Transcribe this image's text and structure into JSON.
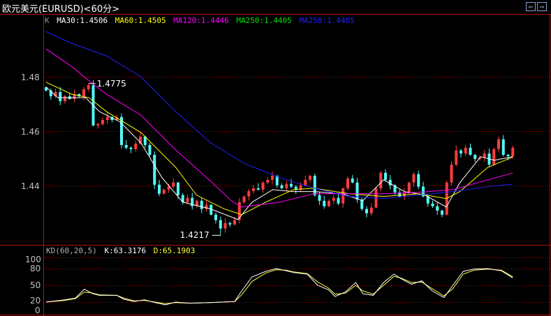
{
  "header": {
    "title": "欧元美元(EURUSD)<60分>",
    "nav_prev": "⇦",
    "nav_next": "⇨"
  },
  "legend": {
    "k_label": "K",
    "ma30": "MA30:1.4506",
    "ma60": "MA60:1.4505",
    "ma120": "MA120:1.4446",
    "ma250a": "MA250:1.4405",
    "ma250b": "MA250:1.4405"
  },
  "colors": {
    "up": "#ff3c3c",
    "down": "#54fcfc",
    "ma30": "#ffffff",
    "ma60": "#ffff00",
    "ma120": "#ff00ff",
    "ma250a": "#00e000",
    "ma250b": "#2020ff",
    "grid": "#a00000",
    "frame": "#b01010",
    "k": "#ffffff",
    "d": "#ffff40"
  },
  "kd_legend": {
    "name": "KD(60,20,5)",
    "k": "K:63.3176",
    "d": "D:65.1903"
  },
  "chart_data": [
    {
      "type": "candlestick",
      "yticks": [
        1.48,
        1.46,
        1.44
      ],
      "ytick_labels": [
        "1.48",
        "1.46",
        "1.44"
      ],
      "ylim": [
        1.4185,
        1.503
      ],
      "grid": true,
      "annotations": [
        {
          "index": 9,
          "value": 1.4775,
          "label": "1.4775",
          "kind": "high"
        },
        {
          "index": 37,
          "value": 1.4217,
          "label": "1.4217",
          "kind": "low"
        }
      ],
      "close": [
        1.4749,
        1.4728,
        1.4744,
        1.471,
        1.4728,
        1.4718,
        1.4736,
        1.4728,
        1.4754,
        1.4769,
        1.4621,
        1.4626,
        1.4641,
        1.4652,
        1.4641,
        1.4652,
        1.4549,
        1.4539,
        1.4534,
        1.4554,
        1.458,
        1.4549,
        1.4513,
        1.4403,
        1.437,
        1.4385,
        1.4396,
        1.4411,
        1.4365,
        1.4339,
        1.4355,
        1.4324,
        1.4344,
        1.4314,
        1.4329,
        1.4293,
        1.4273,
        1.4242,
        1.4262,
        1.4257,
        1.4273,
        1.4339,
        1.436,
        1.438,
        1.439,
        1.4385,
        1.4411,
        1.4421,
        1.4436,
        1.4401,
        1.439,
        1.4406,
        1.4396,
        1.4385,
        1.4401,
        1.4421,
        1.4436,
        1.4365,
        1.4344,
        1.4324,
        1.4344,
        1.4355,
        1.4334,
        1.439,
        1.4426,
        1.4411,
        1.4349,
        1.4314,
        1.4298,
        1.4319,
        1.439,
        1.4447,
        1.4421,
        1.4401,
        1.4375,
        1.436,
        1.4375,
        1.4411,
        1.4442,
        1.4396,
        1.436,
        1.4334,
        1.4324,
        1.4308,
        1.4293,
        1.4411,
        1.4477,
        1.4529,
        1.4518,
        1.4539,
        1.4513,
        1.4498,
        1.4503,
        1.4518,
        1.4477,
        1.4534,
        1.457,
        1.4513,
        1.4508,
        1.4539
      ],
      "moving_averages": [
        {
          "name": "MA30",
          "color_key": "ma30",
          "points": [
            [
              0,
              1.4762
            ],
            [
              2.5,
              1.4723
            ],
            [
              8.4,
              1.4723
            ],
            [
              11.3,
              1.4672
            ],
            [
              15.7,
              1.4634
            ],
            [
              20.1,
              1.4557
            ],
            [
              24.6,
              1.4429
            ],
            [
              29,
              1.4339
            ],
            [
              34.9,
              1.4314
            ],
            [
              40.7,
              1.4275
            ],
            [
              43.7,
              1.4339
            ],
            [
              48.1,
              1.4385
            ],
            [
              52.5,
              1.4378
            ],
            [
              56.9,
              1.4378
            ],
            [
              62.8,
              1.437
            ],
            [
              67.2,
              1.4344
            ],
            [
              71.6,
              1.4421
            ],
            [
              76,
              1.4378
            ],
            [
              80.4,
              1.4365
            ],
            [
              84.9,
              1.4321
            ],
            [
              87.8,
              1.4411
            ],
            [
              92.2,
              1.4506
            ],
            [
              95.1,
              1.4493
            ],
            [
              99,
              1.4506
            ]
          ]
        },
        {
          "name": "MA60",
          "color_key": "ma60",
          "points": [
            [
              0,
              1.478
            ],
            [
              5.4,
              1.4736
            ],
            [
              9.1,
              1.4723
            ],
            [
              12.8,
              1.4672
            ],
            [
              20.1,
              1.4595
            ],
            [
              27.5,
              1.4467
            ],
            [
              31.9,
              1.4365
            ],
            [
              37.8,
              1.4314
            ],
            [
              41.5,
              1.4293
            ],
            [
              46.6,
              1.4339
            ],
            [
              52.5,
              1.4385
            ],
            [
              56.9,
              1.439
            ],
            [
              64.3,
              1.437
            ],
            [
              71.6,
              1.436
            ],
            [
              79,
              1.437
            ],
            [
              84.9,
              1.4352
            ],
            [
              87.8,
              1.4378
            ],
            [
              93.7,
              1.4467
            ],
            [
              99,
              1.4505
            ]
          ]
        },
        {
          "name": "MA120",
          "color_key": "ma120",
          "points": [
            [
              0,
              1.4902
            ],
            [
              5.4,
              1.4838
            ],
            [
              9.9,
              1.4774
            ],
            [
              12.8,
              1.4736
            ],
            [
              20.1,
              1.4659
            ],
            [
              27.5,
              1.4531
            ],
            [
              34.9,
              1.4416
            ],
            [
              39.3,
              1.4344
            ],
            [
              41.5,
              1.4321
            ],
            [
              49.6,
              1.4339
            ],
            [
              56.9,
              1.437
            ],
            [
              64.3,
              1.437
            ],
            [
              71.6,
              1.437
            ],
            [
              79,
              1.4375
            ],
            [
              86.3,
              1.4385
            ],
            [
              93.7,
              1.4421
            ],
            [
              99,
              1.4446
            ]
          ]
        },
        {
          "name": "MA250",
          "color_key": "ma250b",
          "points": [
            [
              0,
              1.4966
            ],
            [
              5.4,
              1.4923
            ],
            [
              12.8,
              1.4877
            ],
            [
              20.1,
              1.48
            ],
            [
              27.5,
              1.4672
            ],
            [
              34.9,
              1.4557
            ],
            [
              42.2,
              1.448
            ],
            [
              49.6,
              1.4429
            ],
            [
              56.9,
              1.439
            ],
            [
              64.3,
              1.436
            ],
            [
              71.6,
              1.4352
            ],
            [
              79,
              1.4365
            ],
            [
              86.3,
              1.4378
            ],
            [
              93.7,
              1.4396
            ],
            [
              99,
              1.4405
            ]
          ]
        }
      ]
    },
    {
      "type": "line",
      "name": "KD(60,20,5)",
      "yticks": [
        100,
        80,
        50,
        20,
        0
      ],
      "ytick_labels": [
        "100",
        "80",
        "50",
        "20",
        "0"
      ],
      "grid": true,
      "series": [
        {
          "name": "K",
          "color_key": "k",
          "points": [
            [
              0,
              20
            ],
            [
              4,
              24
            ],
            [
              6.2,
              27
            ],
            [
              8.1,
              43
            ],
            [
              9.9,
              35
            ],
            [
              11.3,
              32
            ],
            [
              15,
              32
            ],
            [
              16.5,
              25
            ],
            [
              18.7,
              21
            ],
            [
              20.9,
              24
            ],
            [
              23.1,
              19
            ],
            [
              25.3,
              15
            ],
            [
              27.5,
              20
            ],
            [
              30.4,
              18
            ],
            [
              34.9,
              19
            ],
            [
              40,
              21
            ],
            [
              41.5,
              40
            ],
            [
              43.7,
              65
            ],
            [
              46.6,
              75
            ],
            [
              48.8,
              80
            ],
            [
              51,
              76
            ],
            [
              52.5,
              73
            ],
            [
              55.4,
              70
            ],
            [
              57.6,
              50
            ],
            [
              59.9,
              42
            ],
            [
              61.3,
              30
            ],
            [
              63.5,
              38
            ],
            [
              65.7,
              55
            ],
            [
              67.2,
              35
            ],
            [
              69.4,
              32
            ],
            [
              71.6,
              55
            ],
            [
              73.8,
              70
            ],
            [
              75.3,
              62
            ],
            [
              77.5,
              52
            ],
            [
              79.7,
              58
            ],
            [
              81.9,
              40
            ],
            [
              84.4,
              28
            ],
            [
              86.3,
              50
            ],
            [
              88.5,
              75
            ],
            [
              90.7,
              79
            ],
            [
              93.7,
              80
            ],
            [
              96.6,
              76
            ],
            [
              99,
              63.32
            ]
          ]
        },
        {
          "name": "D",
          "color_key": "d",
          "points": [
            [
              0,
              20
            ],
            [
              4,
              23
            ],
            [
              6.2,
              26
            ],
            [
              8.1,
              38
            ],
            [
              9.9,
              36
            ],
            [
              11.3,
              33
            ],
            [
              15,
              32
            ],
            [
              16.5,
              27
            ],
            [
              18.7,
              22
            ],
            [
              20.9,
              23
            ],
            [
              23.1,
              20
            ],
            [
              25.3,
              17
            ],
            [
              27.5,
              19
            ],
            [
              30.4,
              18
            ],
            [
              34.9,
              19
            ],
            [
              40,
              21
            ],
            [
              41.5,
              33
            ],
            [
              43.7,
              57
            ],
            [
              46.6,
              72
            ],
            [
              48.8,
              78
            ],
            [
              51,
              77
            ],
            [
              52.5,
              74
            ],
            [
              55.4,
              71
            ],
            [
              57.6,
              56
            ],
            [
              59.9,
              45
            ],
            [
              61.3,
              34
            ],
            [
              63.5,
              36
            ],
            [
              65.7,
              50
            ],
            [
              67.2,
              40
            ],
            [
              69.4,
              34
            ],
            [
              71.6,
              50
            ],
            [
              73.8,
              66
            ],
            [
              75.3,
              63
            ],
            [
              77.5,
              55
            ],
            [
              79.7,
              56
            ],
            [
              81.9,
              44
            ],
            [
              84.4,
              31
            ],
            [
              86.3,
              44
            ],
            [
              88.5,
              70
            ],
            [
              90.7,
              77
            ],
            [
              93.7,
              79
            ],
            [
              96.6,
              77
            ],
            [
              99,
              65.19
            ]
          ]
        }
      ]
    }
  ]
}
